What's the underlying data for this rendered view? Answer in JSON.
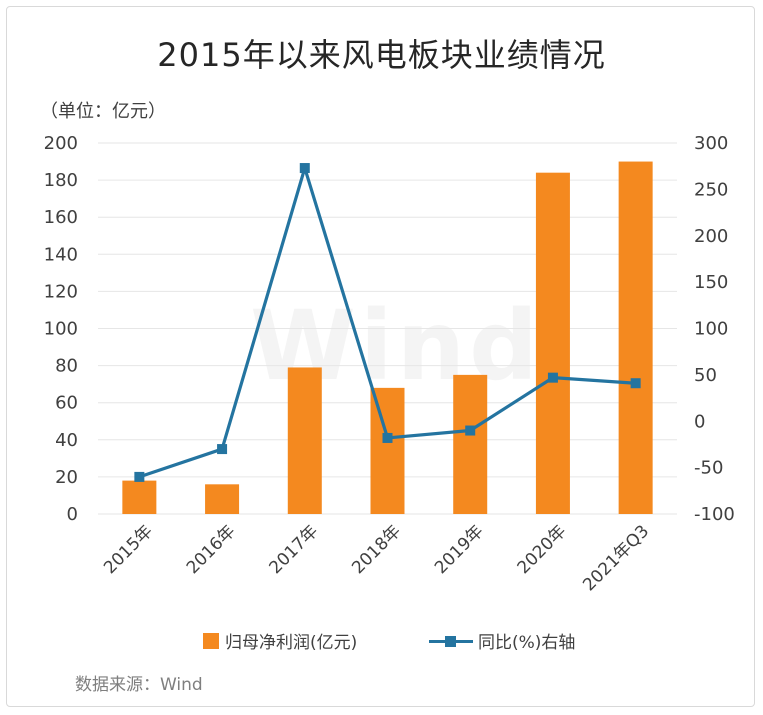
{
  "title": "2015年以来风电板块业绩情况",
  "unit_label": "（单位：亿元）",
  "source": "数据来源：Wind",
  "watermark": "Wind",
  "colors": {
    "bar": "#f4891f",
    "line": "#2474a0",
    "grid": "#e6e6e6"
  },
  "chart_data": {
    "type": "bar",
    "categories": [
      "2015年",
      "2016年",
      "2017年",
      "2018年",
      "2019年",
      "2020年",
      "2021年Q3"
    ],
    "series": [
      {
        "name": "归母净利润(亿元)",
        "type": "bar",
        "axis": "left",
        "values": [
          18,
          16,
          79,
          68,
          75,
          184,
          190
        ]
      },
      {
        "name": "同比(%)右轴",
        "type": "line",
        "axis": "right",
        "values": [
          -60,
          -30,
          273,
          -18,
          -10,
          47,
          41
        ]
      }
    ],
    "ylim_left": [
      0,
      200
    ],
    "ylim_right": [
      -100,
      300
    ],
    "yticks_left": [
      "200",
      "180",
      "160",
      "140",
      "120",
      "100",
      "80",
      "60",
      "40",
      "20",
      "0"
    ],
    "yticks_right": [
      "300",
      "250",
      "200",
      "150",
      "100",
      "50",
      "0",
      "-50",
      "-100"
    ],
    "grid": true,
    "legend_position": "bottom"
  }
}
